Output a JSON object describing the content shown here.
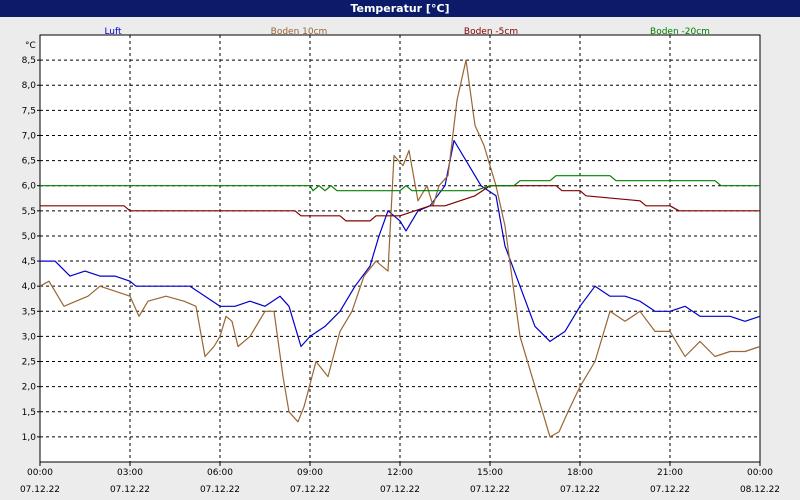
{
  "window": {
    "title": "Temperatur [°C]"
  },
  "chart_data": {
    "type": "line",
    "title": "Temperatur [°C]",
    "ylabel": "°C",
    "ylim": [
      0.5,
      9.0
    ],
    "xlim": [
      "07.12.22 00:00",
      "08.12.22 00:00"
    ],
    "grid": true,
    "legend_position": "top",
    "yticks": [
      "1,0",
      "1,5",
      "2,0",
      "2,5",
      "3,0",
      "3,5",
      "4,0",
      "4,5",
      "5,0",
      "5,5",
      "6,0",
      "6,5",
      "7,0",
      "7,5",
      "8,0",
      "8,5"
    ],
    "xticks": [
      {
        "time": "00:00",
        "date": "07.12.22"
      },
      {
        "time": "03:00",
        "date": "07.12.22"
      },
      {
        "time": "06:00",
        "date": "07.12.22"
      },
      {
        "time": "09:00",
        "date": "07.12.22"
      },
      {
        "time": "12:00",
        "date": "07.12.22"
      },
      {
        "time": "15:00",
        "date": "07.12.22"
      },
      {
        "time": "18:00",
        "date": "07.12.22"
      },
      {
        "time": "21:00",
        "date": "07.12.22"
      },
      {
        "time": "00:00",
        "date": "08.12.22"
      }
    ],
    "series": [
      {
        "name": "Luft",
        "color": "#0000cc",
        "points": [
          [
            0,
            4.5
          ],
          [
            0.5,
            4.5
          ],
          [
            1,
            4.2
          ],
          [
            1.5,
            4.3
          ],
          [
            2,
            4.2
          ],
          [
            2.5,
            4.2
          ],
          [
            3,
            4.1
          ],
          [
            3.2,
            4.0
          ],
          [
            4,
            4.0
          ],
          [
            4.5,
            4.0
          ],
          [
            5,
            4.0
          ],
          [
            5.5,
            3.8
          ],
          [
            6,
            3.6
          ],
          [
            6.5,
            3.6
          ],
          [
            7,
            3.7
          ],
          [
            7.5,
            3.6
          ],
          [
            8,
            3.8
          ],
          [
            8.3,
            3.6
          ],
          [
            8.7,
            2.8
          ],
          [
            9,
            3.0
          ],
          [
            9.5,
            3.2
          ],
          [
            10,
            3.5
          ],
          [
            10.5,
            4.0
          ],
          [
            11,
            4.4
          ],
          [
            11.3,
            5.0
          ],
          [
            11.6,
            5.5
          ],
          [
            12,
            5.3
          ],
          [
            12.2,
            5.1
          ],
          [
            12.6,
            5.5
          ],
          [
            13,
            5.6
          ],
          [
            13.5,
            6.0
          ],
          [
            13.8,
            6.9
          ],
          [
            14.3,
            6.4
          ],
          [
            14.7,
            6.0
          ],
          [
            15.2,
            5.8
          ],
          [
            15.5,
            4.8
          ],
          [
            16,
            4.0
          ],
          [
            16.5,
            3.2
          ],
          [
            17,
            2.9
          ],
          [
            17.5,
            3.1
          ],
          [
            18,
            3.6
          ],
          [
            18.5,
            4.0
          ],
          [
            19,
            3.8
          ],
          [
            19.5,
            3.8
          ],
          [
            20,
            3.7
          ],
          [
            20.5,
            3.5
          ],
          [
            21,
            3.5
          ],
          [
            21.5,
            3.6
          ],
          [
            22,
            3.4
          ],
          [
            22.5,
            3.4
          ],
          [
            23,
            3.4
          ],
          [
            23.5,
            3.3
          ],
          [
            24,
            3.4
          ]
        ]
      },
      {
        "name": "Boden 10cm",
        "color": "#996633",
        "points": [
          [
            0,
            4.0
          ],
          [
            0.3,
            4.1
          ],
          [
            0.8,
            3.6
          ],
          [
            1.2,
            3.7
          ],
          [
            1.6,
            3.8
          ],
          [
            2,
            4.0
          ],
          [
            2.5,
            3.9
          ],
          [
            3,
            3.8
          ],
          [
            3.3,
            3.4
          ],
          [
            3.6,
            3.7
          ],
          [
            4.2,
            3.8
          ],
          [
            4.8,
            3.7
          ],
          [
            5.2,
            3.6
          ],
          [
            5.5,
            2.6
          ],
          [
            5.8,
            2.8
          ],
          [
            6,
            3.0
          ],
          [
            6.2,
            3.4
          ],
          [
            6.4,
            3.3
          ],
          [
            6.6,
            2.8
          ],
          [
            7,
            3.0
          ],
          [
            7.5,
            3.5
          ],
          [
            7.8,
            3.5
          ],
          [
            8.1,
            2.2
          ],
          [
            8.3,
            1.5
          ],
          [
            8.6,
            1.3
          ],
          [
            8.8,
            1.6
          ],
          [
            9.2,
            2.5
          ],
          [
            9.6,
            2.2
          ],
          [
            10,
            3.1
          ],
          [
            10.4,
            3.5
          ],
          [
            10.8,
            4.2
          ],
          [
            11.2,
            4.5
          ],
          [
            11.6,
            4.3
          ],
          [
            11.8,
            6.6
          ],
          [
            12.1,
            6.4
          ],
          [
            12.3,
            6.7
          ],
          [
            12.6,
            5.7
          ],
          [
            12.9,
            6.0
          ],
          [
            13.1,
            5.6
          ],
          [
            13.3,
            6.0
          ],
          [
            13.6,
            6.2
          ],
          [
            13.9,
            7.7
          ],
          [
            14.2,
            8.5
          ],
          [
            14.5,
            7.2
          ],
          [
            14.8,
            6.8
          ],
          [
            15.2,
            6.0
          ],
          [
            15.5,
            5.2
          ],
          [
            16,
            3.0
          ],
          [
            16.5,
            2.0
          ],
          [
            17,
            1.0
          ],
          [
            17.3,
            1.1
          ],
          [
            17.6,
            1.5
          ],
          [
            18,
            2.0
          ],
          [
            18.5,
            2.5
          ],
          [
            19,
            3.5
          ],
          [
            19.5,
            3.3
          ],
          [
            20,
            3.5
          ],
          [
            20.5,
            3.1
          ],
          [
            21,
            3.1
          ],
          [
            21.5,
            2.6
          ],
          [
            22,
            2.9
          ],
          [
            22.5,
            2.6
          ],
          [
            23,
            2.7
          ],
          [
            23.5,
            2.7
          ],
          [
            24,
            2.8
          ]
        ]
      },
      {
        "name": "Boden -5cm",
        "color": "#800000",
        "points": [
          [
            0,
            5.6
          ],
          [
            2.8,
            5.6
          ],
          [
            3,
            5.5
          ],
          [
            8.5,
            5.5
          ],
          [
            8.7,
            5.4
          ],
          [
            10,
            5.4
          ],
          [
            10.2,
            5.3
          ],
          [
            11,
            5.3
          ],
          [
            11.2,
            5.4
          ],
          [
            12,
            5.4
          ],
          [
            12.5,
            5.5
          ],
          [
            13,
            5.6
          ],
          [
            13.5,
            5.6
          ],
          [
            14,
            5.7
          ],
          [
            14.5,
            5.8
          ],
          [
            15,
            6.0
          ],
          [
            15.5,
            6.0
          ],
          [
            17.2,
            6.0
          ],
          [
            17.4,
            5.9
          ],
          [
            18,
            5.9
          ],
          [
            18.2,
            5.8
          ],
          [
            20,
            5.7
          ],
          [
            20.2,
            5.6
          ],
          [
            21,
            5.6
          ],
          [
            21.3,
            5.5
          ],
          [
            24,
            5.5
          ]
        ]
      },
      {
        "name": "Boden -20cm",
        "color": "#008000",
        "points": [
          [
            0,
            6.0
          ],
          [
            9.0,
            6.0
          ],
          [
            9.1,
            5.9
          ],
          [
            9.3,
            6.0
          ],
          [
            9.5,
            5.9
          ],
          [
            9.7,
            6.0
          ],
          [
            9.9,
            5.9
          ],
          [
            12.0,
            5.9
          ],
          [
            12.2,
            6.0
          ],
          [
            12.4,
            5.9
          ],
          [
            14.5,
            5.9
          ],
          [
            15.0,
            6.0
          ],
          [
            15.8,
            6.0
          ],
          [
            16.0,
            6.1
          ],
          [
            17.0,
            6.1
          ],
          [
            17.2,
            6.2
          ],
          [
            19.0,
            6.2
          ],
          [
            19.2,
            6.1
          ],
          [
            22.5,
            6.1
          ],
          [
            22.7,
            6.0
          ],
          [
            24,
            6.0
          ]
        ]
      }
    ]
  }
}
